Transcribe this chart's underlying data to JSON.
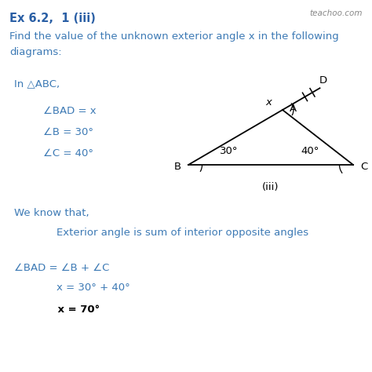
{
  "title": "Ex 6.2,  1 (iii)",
  "watermark": "teachoo.com",
  "q_line1": "Find the value of the unknown exterior angle x in the following",
  "q_line2": "diagrams:",
  "left_text_lines": [
    "In △ABC,",
    "∠BAD = x",
    "∠B = 30°",
    "∠C = 40°"
  ],
  "explanation_lines": [
    "We know that,",
    "    Exterior angle is sum of interior opposite angles",
    "∠BAD = ∠B + ∠C",
    "    x = 30° + 40°",
    "    x = 70°"
  ],
  "diagram_label": "(iii)",
  "angle_B": "30°",
  "angle_C": "40°",
  "angle_x": "x",
  "bg_color": "#ffffff",
  "text_color": "#3d7ab5",
  "bold_color": "#000000",
  "line_color": "#000000",
  "title_color": "#2a5fa5",
  "watermark_color": "#888888"
}
